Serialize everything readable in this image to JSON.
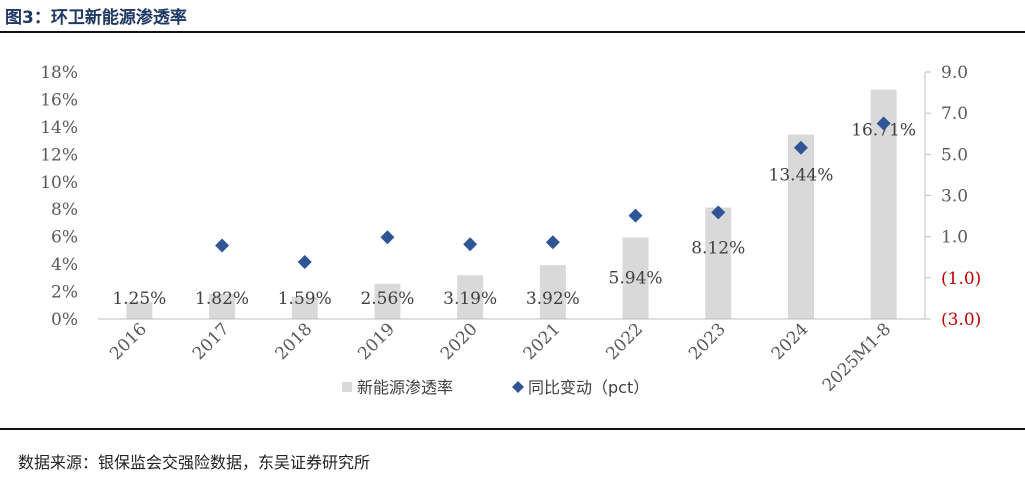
{
  "figure": {
    "title": "图3：环卫新能源渗透率",
    "source": "数据来源：银保监会交强险数据，东吴证券研究所"
  },
  "colors": {
    "bar": "#d9d9d9",
    "marker": "#2f5597",
    "axis_left": "#595959",
    "negative_tick": "#c00000"
  },
  "chart_data": {
    "type": "bar",
    "categories": [
      "2016",
      "2017",
      "2018",
      "2019",
      "2020",
      "2021",
      "2022",
      "2023",
      "2024",
      "2025M1-8"
    ],
    "series": [
      {
        "name": "新能源渗透率",
        "type": "bar",
        "axis": "left",
        "values": [
          1.25,
          1.82,
          1.59,
          2.56,
          3.19,
          3.92,
          5.94,
          8.12,
          13.44,
          16.71
        ],
        "labels": [
          "1.25%",
          "1.82%",
          "1.59%",
          "2.56%",
          "3.19%",
          "3.92%",
          "5.94%",
          "8.12%",
          "13.44%",
          "16.71%"
        ]
      },
      {
        "name": "同比变动（pct）",
        "type": "scatter",
        "axis": "right",
        "values": [
          null,
          0.57,
          -0.23,
          0.97,
          0.63,
          0.73,
          2.02,
          2.18,
          5.32,
          6.5
        ]
      }
    ],
    "y_left": {
      "min": 0,
      "max": 18,
      "step": 2,
      "tick_labels": [
        "0%",
        "2%",
        "4%",
        "6%",
        "8%",
        "10%",
        "12%",
        "14%",
        "16%",
        "18%"
      ]
    },
    "y_right": {
      "min": -3,
      "max": 9,
      "step": 2,
      "tick_labels": [
        "(3.0)",
        "(1.0)",
        "1.0",
        "3.0",
        "5.0",
        "7.0",
        "9.0"
      ]
    },
    "legend": {
      "placement": "bottom"
    },
    "grid": false
  }
}
